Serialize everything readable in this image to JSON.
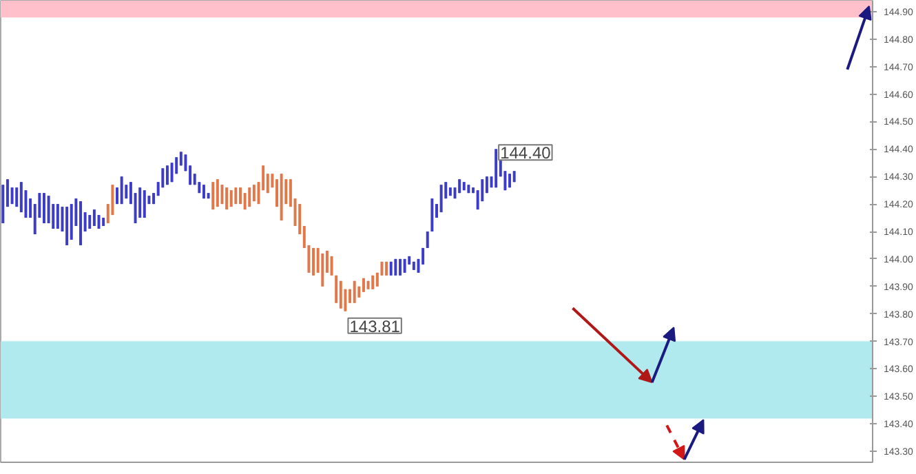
{
  "chart_data": {
    "type": "candlestick",
    "categories": [
      null,
      null,
      null,
      null,
      null,
      null,
      null,
      null,
      null,
      null,
      null,
      null,
      null,
      null,
      null,
      null,
      null,
      null,
      null,
      null,
      null,
      null,
      null,
      null,
      null,
      null,
      null,
      null,
      null,
      null,
      null,
      null,
      null,
      null,
      null,
      null,
      null,
      null,
      null,
      null,
      null,
      null,
      null,
      null,
      null,
      null,
      null,
      null,
      null,
      null,
      null,
      null,
      null,
      null,
      null,
      null,
      null,
      null,
      null,
      null,
      null,
      null,
      null,
      null,
      null,
      null,
      null,
      null,
      null,
      null,
      null,
      null,
      null,
      null,
      null,
      null,
      null,
      null,
      null,
      null,
      null,
      null,
      null,
      null,
      null,
      null,
      null,
      null,
      null,
      null,
      null,
      null,
      null,
      null,
      null,
      null,
      null,
      null,
      null,
      null,
      null,
      null,
      null,
      null,
      null,
      null,
      null,
      null,
      null,
      null,
      null,
      null,
      null,
      null,
      null,
      null,
      null,
      null,
      null,
      null,
      null,
      null,
      null,
      null,
      null,
      null,
      null,
      null,
      null,
      null,
      null,
      null,
      null,
      null,
      null,
      null,
      null,
      null,
      null,
      null,
      null,
      null,
      null,
      null,
      null,
      null,
      null,
      null,
      null,
      null,
      null,
      null,
      null,
      null,
      null,
      null,
      null,
      null,
      null,
      null,
      null,
      null,
      null,
      null,
      null,
      null,
      null,
      null,
      null,
      null,
      null,
      null,
      null,
      null,
      null,
      null,
      null,
      null,
      null,
      null,
      null,
      null,
      null,
      null,
      null,
      null,
      null,
      null,
      null,
      null,
      null
    ],
    "ohlc": [
      [
        144.13,
        144.27,
        144.13,
        144.27
      ],
      [
        144.19,
        144.29,
        144.19,
        144.29
      ],
      [
        144.2,
        144.26,
        144.2,
        144.26
      ],
      [
        144.19,
        144.26,
        144.19,
        144.26
      ],
      [
        144.17,
        144.28,
        144.17,
        144.28
      ],
      [
        144.15,
        144.25,
        144.15,
        144.25
      ],
      [
        144.15,
        144.22,
        144.15,
        144.22
      ],
      [
        144.09,
        144.2,
        144.09,
        144.2
      ],
      [
        144.15,
        144.24,
        144.15,
        144.24
      ],
      [
        144.13,
        144.24,
        144.13,
        144.24
      ],
      [
        144.13,
        144.23,
        144.13,
        144.23
      ],
      [
        144.11,
        144.2,
        144.11,
        144.2
      ],
      [
        144.11,
        144.2,
        144.11,
        144.2
      ],
      [
        144.1,
        144.19,
        144.1,
        144.19
      ],
      [
        144.05,
        144.19,
        144.05,
        144.19
      ],
      [
        144.07,
        144.2,
        144.07,
        144.2
      ],
      [
        144.12,
        144.22,
        144.12,
        144.22
      ],
      [
        144.05,
        144.21,
        144.05,
        144.21
      ],
      [
        144.1,
        144.17,
        144.1,
        144.17
      ],
      [
        144.11,
        144.16,
        144.11,
        144.16
      ],
      [
        144.12,
        144.18,
        144.12,
        144.18
      ],
      [
        144.11,
        144.16,
        144.11,
        144.16
      ],
      [
        144.12,
        144.15,
        144.12,
        144.15
      ],
      [
        144.2,
        144.2,
        144.13,
        144.13
      ],
      [
        144.27,
        144.27,
        144.16,
        144.16
      ],
      [
        144.2,
        144.26,
        144.2,
        144.26
      ],
      [
        144.2,
        144.3,
        144.2,
        144.3
      ],
      [
        144.22,
        144.27,
        144.22,
        144.27
      ],
      [
        144.2,
        144.28,
        144.2,
        144.28
      ],
      [
        144.13,
        144.24,
        144.13,
        144.24
      ],
      [
        144.15,
        144.26,
        144.15,
        144.26
      ],
      [
        144.15,
        144.25,
        144.15,
        144.25
      ],
      [
        144.2,
        144.23,
        144.2,
        144.23
      ],
      [
        144.2,
        144.24,
        144.2,
        144.24
      ],
      [
        144.23,
        144.28,
        144.23,
        144.28
      ],
      [
        144.26,
        144.33,
        144.26,
        144.33
      ],
      [
        144.27,
        144.34,
        144.27,
        144.34
      ],
      [
        144.28,
        144.35,
        144.28,
        144.35
      ],
      [
        144.31,
        144.37,
        144.31,
        144.37
      ],
      [
        144.34,
        144.39,
        144.34,
        144.39
      ],
      [
        144.32,
        144.38,
        144.32,
        144.38
      ],
      [
        144.27,
        144.34,
        144.27,
        144.34
      ],
      [
        144.27,
        144.31,
        144.27,
        144.31
      ],
      [
        144.24,
        144.28,
        144.24,
        144.28
      ],
      [
        144.22,
        144.27,
        144.22,
        144.27
      ],
      [
        144.22,
        144.24,
        144.22,
        144.24
      ],
      [
        144.28,
        144.28,
        144.18,
        144.18
      ],
      [
        144.29,
        144.29,
        144.19,
        144.19
      ],
      [
        144.27,
        144.27,
        144.2,
        144.2
      ],
      [
        144.26,
        144.26,
        144.18,
        144.18
      ],
      [
        144.25,
        144.25,
        144.19,
        144.19
      ],
      [
        144.26,
        144.26,
        144.2,
        144.2
      ],
      [
        144.26,
        144.26,
        144.2,
        144.2
      ],
      [
        144.24,
        144.24,
        144.18,
        144.18
      ],
      [
        144.26,
        144.26,
        144.19,
        144.19
      ],
      [
        144.27,
        144.27,
        144.21,
        144.21
      ],
      [
        144.28,
        144.28,
        144.2,
        144.2
      ],
      [
        144.34,
        144.34,
        144.25,
        144.25
      ],
      [
        144.31,
        144.31,
        144.24,
        144.24
      ],
      [
        144.31,
        144.31,
        144.26,
        144.26
      ],
      [
        144.29,
        144.29,
        144.19,
        144.19
      ],
      [
        144.31,
        144.31,
        144.14,
        144.14
      ],
      [
        144.29,
        144.29,
        144.2,
        144.2
      ],
      [
        144.29,
        144.29,
        144.19,
        144.19
      ],
      [
        144.22,
        144.22,
        144.12,
        144.12
      ],
      [
        144.2,
        144.2,
        144.09,
        144.09
      ],
      [
        144.12,
        144.12,
        144.04,
        144.04
      ],
      [
        144.05,
        144.05,
        143.95,
        143.95
      ],
      [
        144.04,
        144.04,
        143.94,
        143.94
      ],
      [
        144.04,
        144.04,
        143.95,
        143.95
      ],
      [
        144.02,
        144.02,
        143.9,
        143.9
      ],
      [
        144.03,
        144.03,
        143.95,
        143.95
      ],
      [
        144.01,
        144.01,
        143.94,
        143.94
      ],
      [
        143.94,
        143.94,
        143.84,
        143.84
      ],
      [
        143.92,
        143.92,
        143.82,
        143.82
      ],
      [
        143.89,
        143.89,
        143.81,
        143.81
      ],
      [
        143.89,
        143.89,
        143.84,
        143.84
      ],
      [
        143.92,
        143.92,
        143.84,
        143.84
      ],
      [
        143.9,
        143.9,
        143.86,
        143.86
      ],
      [
        143.93,
        143.93,
        143.88,
        143.88
      ],
      [
        143.92,
        143.92,
        143.89,
        143.89
      ],
      [
        143.94,
        143.94,
        143.89,
        143.89
      ],
      [
        143.95,
        143.95,
        143.9,
        143.9
      ],
      [
        143.99,
        143.99,
        143.94,
        143.94
      ],
      [
        143.99,
        143.99,
        143.94,
        143.94
      ],
      [
        143.94,
        143.99,
        143.94,
        143.99
      ],
      [
        143.94,
        144.0,
        143.94,
        144.0
      ],
      [
        143.94,
        144.0,
        143.94,
        144.0
      ],
      [
        143.95,
        144.0,
        143.95,
        144.0
      ],
      [
        143.98,
        144.01,
        143.98,
        144.01
      ],
      [
        143.96,
        143.99,
        143.96,
        143.99
      ],
      [
        143.95,
        144.0,
        143.95,
        144.0
      ],
      [
        143.98,
        144.04,
        143.98,
        144.04
      ],
      [
        144.04,
        144.1,
        144.04,
        144.1
      ],
      [
        144.1,
        144.22,
        144.1,
        144.22
      ],
      [
        144.15,
        144.2,
        144.15,
        144.2
      ],
      [
        144.17,
        144.27,
        144.17,
        144.27
      ],
      [
        144.22,
        144.28,
        144.22,
        144.28
      ],
      [
        144.23,
        144.26,
        144.23,
        144.26
      ],
      [
        144.22,
        144.26,
        144.22,
        144.26
      ],
      [
        144.24,
        144.29,
        144.24,
        144.29
      ],
      [
        144.25,
        144.28,
        144.25,
        144.28
      ],
      [
        144.24,
        144.27,
        144.24,
        144.27
      ],
      [
        144.24,
        144.26,
        144.24,
        144.26
      ],
      [
        144.18,
        144.25,
        144.18,
        144.25
      ],
      [
        144.21,
        144.29,
        144.21,
        144.29
      ],
      [
        144.24,
        144.3,
        144.24,
        144.3
      ],
      [
        144.26,
        144.3,
        144.26,
        144.3
      ],
      [
        144.26,
        144.4,
        144.26,
        144.4
      ],
      [
        144.3,
        144.37,
        144.3,
        144.37
      ],
      [
        144.25,
        144.32,
        144.25,
        144.32
      ],
      [
        144.26,
        144.31,
        144.26,
        144.31
      ],
      [
        144.28,
        144.32,
        144.28,
        144.32
      ],
      null,
      null,
      null,
      null,
      null,
      null,
      null,
      null,
      null,
      null,
      null,
      null,
      null,
      null,
      null,
      null,
      null,
      null,
      null,
      null,
      null,
      null,
      null,
      null,
      null,
      null,
      null,
      null,
      null,
      null,
      null,
      null,
      null,
      null,
      null,
      null,
      null,
      null,
      null,
      null,
      null,
      null,
      null,
      null,
      null,
      null,
      null,
      null,
      null,
      null,
      null,
      null,
      null,
      null,
      null,
      null,
      null,
      null,
      null,
      null,
      null,
      null,
      null,
      null,
      null,
      null,
      null,
      null,
      null,
      null,
      null,
      null,
      null,
      null,
      null,
      null,
      null,
      null
    ],
    "colors": [
      "#3c3cc8",
      "#3c3cc8",
      "#3c3cc8",
      "#3c3cc8",
      "#3c3cc8",
      "#3c3cc8",
      "#3c3cc8",
      "#3c3cc8",
      "#3c3cc8",
      "#3c3cc8",
      "#3c3cc8",
      "#3c3cc8",
      "#3c3cc8",
      "#3c3cc8",
      "#3c3cc8",
      "#3c3cc8",
      "#3c3cc8",
      "#3c3cc8",
      "#3c3cc8",
      "#3c3cc8",
      "#3c3cc8",
      "#3c3cc8",
      "#3c3cc8",
      "#e2784a",
      "#e2784a",
      "#3c3cc8",
      "#3c3cc8",
      "#3c3cc8",
      "#3c3cc8",
      "#3c3cc8",
      "#3c3cc8",
      "#3c3cc8",
      "#3c3cc8",
      "#3c3cc8",
      "#3c3cc8",
      "#3c3cc8",
      "#3c3cc8",
      "#3c3cc8",
      "#3c3cc8",
      "#3c3cc8",
      "#3c3cc8",
      "#3c3cc8",
      "#3c3cc8",
      "#3c3cc8",
      "#3c3cc8",
      "#3c3cc8",
      "#e2784a",
      "#e2784a",
      "#e2784a",
      "#e2784a",
      "#e2784a",
      "#e2784a",
      "#e2784a",
      "#e2784a",
      "#e2784a",
      "#e2784a",
      "#e2784a",
      "#e2784a",
      "#e2784a",
      "#e2784a",
      "#e2784a",
      "#e2784a",
      "#e2784a",
      "#e2784a",
      "#e2784a",
      "#e2784a",
      "#e2784a",
      "#e2784a",
      "#e2784a",
      "#e2784a",
      "#e2784a",
      "#e2784a",
      "#e2784a",
      "#e2784a",
      "#e2784a",
      "#e2784a",
      "#e2784a",
      "#e2784a",
      "#e2784a",
      "#e2784a",
      "#e2784a",
      "#e2784a",
      "#e2784a",
      "#e2784a",
      "#e2784a",
      "#3c3cc8",
      "#3c3cc8",
      "#3c3cc8",
      "#3c3cc8",
      "#3c3cc8",
      "#3c3cc8",
      "#3c3cc8",
      "#3c3cc8",
      "#3c3cc8",
      "#3c3cc8",
      "#3c3cc8",
      "#3c3cc8",
      "#3c3cc8",
      "#3c3cc8",
      "#3c3cc8",
      "#3c3cc8",
      "#3c3cc8",
      "#3c3cc8",
      "#3c3cc8",
      "#3c3cc8",
      "#3c3cc8",
      "#3c3cc8",
      "#3c3cc8",
      "#3c3cc8",
      "#3c3cc8",
      "#3c3cc8",
      "#3c3cc8",
      "#3c3cc8",
      null,
      null,
      null,
      null,
      null,
      null,
      null,
      null,
      null,
      null,
      null,
      null,
      null,
      null,
      null,
      null,
      null,
      null,
      null,
      null,
      null,
      null,
      null,
      null,
      null,
      null,
      null,
      null,
      null,
      null,
      null,
      null,
      null,
      null,
      null,
      null,
      null,
      null,
      null,
      null,
      null,
      null,
      null,
      null,
      null,
      null,
      null,
      null,
      null,
      null,
      null,
      null,
      null,
      null,
      null,
      null,
      null,
      null,
      null,
      null,
      null,
      null,
      null,
      null,
      null,
      null,
      null,
      null,
      null,
      null,
      null,
      null,
      null,
      null,
      null,
      null,
      null,
      null
    ],
    "ylim": [
      143.26,
      144.94
    ],
    "yticks": [
      {
        "value": 143.3,
        "label": "143.30"
      },
      {
        "value": 143.4,
        "label": "143.40"
      },
      {
        "value": 143.5,
        "label": "143.50"
      },
      {
        "value": 143.6,
        "label": "143.60"
      },
      {
        "value": 143.7,
        "label": "143.70"
      },
      {
        "value": 143.8,
        "label": "143.80"
      },
      {
        "value": 143.9,
        "label": "143.90"
      },
      {
        "value": 144.0,
        "label": "144.00"
      },
      {
        "value": 144.1,
        "label": "144.10"
      },
      {
        "value": 144.2,
        "label": "144.20"
      },
      {
        "value": 144.3,
        "label": "144.30"
      },
      {
        "value": 144.4,
        "label": "144.40"
      },
      {
        "value": 144.5,
        "label": "144.50"
      },
      {
        "value": 144.6,
        "label": "144.60"
      },
      {
        "value": 144.7,
        "label": "144.70"
      },
      {
        "value": 144.8,
        "label": "144.80"
      },
      {
        "value": 144.9,
        "label": "144.90"
      }
    ],
    "tick_labels": "y",
    "grid": false,
    "bands": [
      {
        "axis": "y",
        "from": 144.88,
        "to": 144.94,
        "color": "#ffc0cb"
      },
      {
        "axis": "y",
        "from": 143.42,
        "to": 143.7,
        "color": "#b0eaee"
      }
    ],
    "annotations": [
      "144.40",
      "143.81"
    ]
  }
}
